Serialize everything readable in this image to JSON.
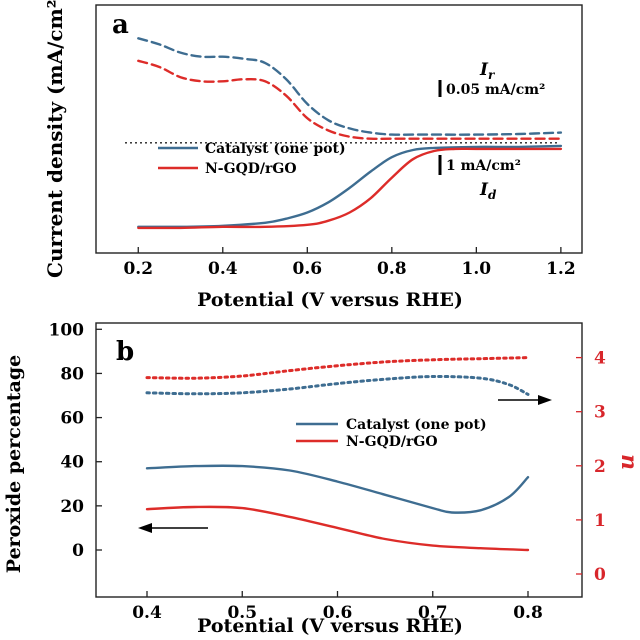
{
  "chart_data": [
    {
      "type": "line",
      "panel_label": "a",
      "xlabel": "Potential (V versus RHE)",
      "ylabel": "Current density (mA/cm²)",
      "xlim": [
        0.1,
        1.25
      ],
      "xticks": [
        "0.2",
        "0.4",
        "0.6",
        "0.8",
        "1.0",
        "1.2"
      ],
      "y_tick_labels": "none",
      "legend": {
        "placement": "middle-left",
        "entries": [
          "Catalyst (one pot)",
          "N-GQD/rGO"
        ]
      },
      "reference_line": {
        "style": "dotted",
        "description": "zero-current baseline"
      },
      "annotations": {
        "ring_label": "I",
        "ring_subscript": "r",
        "ring_scale": "0.05 mA/cm²",
        "disk_label": "I",
        "disk_subscript": "d",
        "disk_scale": "1 mA/cm²"
      },
      "series": [
        {
          "name": "Catalyst (one pot)",
          "role": "ring current",
          "color": "#3e6d91",
          "style": "dashed",
          "points": [
            [
              0.2,
              95
            ],
            [
              0.25,
              92
            ],
            [
              0.3,
              88
            ],
            [
              0.35,
              86
            ],
            [
              0.4,
              86
            ],
            [
              0.45,
              85
            ],
            [
              0.5,
              83
            ],
            [
              0.55,
              75
            ],
            [
              0.6,
              63
            ],
            [
              0.65,
              55
            ],
            [
              0.7,
              51
            ],
            [
              0.75,
              49
            ],
            [
              0.8,
              48
            ],
            [
              0.85,
              48
            ],
            [
              0.9,
              48
            ],
            [
              1.0,
              48
            ],
            [
              1.1,
              48.3
            ],
            [
              1.2,
              49
            ]
          ]
        },
        {
          "name": "N-GQD/rGO",
          "role": "ring current",
          "color": "#dd2c29",
          "style": "dashed",
          "points": [
            [
              0.2,
              84
            ],
            [
              0.25,
              81
            ],
            [
              0.3,
              76
            ],
            [
              0.35,
              74
            ],
            [
              0.4,
              74
            ],
            [
              0.45,
              75
            ],
            [
              0.5,
              74
            ],
            [
              0.55,
              67
            ],
            [
              0.6,
              56
            ],
            [
              0.65,
              50
            ],
            [
              0.7,
              47
            ],
            [
              0.75,
              46
            ],
            [
              0.8,
              46
            ],
            [
              0.85,
              46
            ],
            [
              0.9,
              46
            ],
            [
              1.0,
              46
            ],
            [
              1.1,
              46
            ],
            [
              1.2,
              46
            ]
          ]
        },
        {
          "name": "Catalyst (one pot)",
          "role": "disk current",
          "color": "#3e6d91",
          "style": "solid",
          "points": [
            [
              0.2,
              3
            ],
            [
              0.3,
              3
            ],
            [
              0.4,
              3.5
            ],
            [
              0.5,
              5
            ],
            [
              0.55,
              7
            ],
            [
              0.6,
              10
            ],
            [
              0.65,
              15
            ],
            [
              0.7,
              22
            ],
            [
              0.75,
              30
            ],
            [
              0.8,
              37
            ],
            [
              0.85,
              40.5
            ],
            [
              0.9,
              41.5
            ],
            [
              1.0,
              42
            ],
            [
              1.1,
              42
            ],
            [
              1.2,
              42.5
            ]
          ]
        },
        {
          "name": "N-GQD/rGO",
          "role": "disk current",
          "color": "#dd2c29",
          "style": "solid",
          "points": [
            [
              0.2,
              2.5
            ],
            [
              0.3,
              2.5
            ],
            [
              0.4,
              3
            ],
            [
              0.5,
              3
            ],
            [
              0.6,
              4
            ],
            [
              0.65,
              6
            ],
            [
              0.7,
              10
            ],
            [
              0.75,
              17
            ],
            [
              0.8,
              27
            ],
            [
              0.85,
              36
            ],
            [
              0.9,
              40
            ],
            [
              0.95,
              41
            ],
            [
              1.0,
              41
            ],
            [
              1.1,
              41
            ],
            [
              1.2,
              41
            ]
          ]
        }
      ]
    },
    {
      "type": "line",
      "panel_label": "b",
      "xlabel": "Potential (V versus RHE)",
      "ylabel": "Peroxide percentage",
      "y2label": "n",
      "xlim": [
        0.35,
        0.85
      ],
      "ylim": [
        -10,
        100
      ],
      "y2lim": [
        0,
        4.4
      ],
      "xticks": [
        "0.4",
        "0.5",
        "0.6",
        "0.7",
        "0.8"
      ],
      "yticks": [
        "0",
        "20",
        "40",
        "60",
        "80",
        "100"
      ],
      "y2ticks": [
        "0",
        "1",
        "2",
        "3",
        "4"
      ],
      "legend": {
        "placement": "middle-right",
        "entries": [
          "Catalyst (one pot)",
          "N-GQD/rGO"
        ]
      },
      "arrows": [
        {
          "direction": "right",
          "meaning": "dotted curves read on right axis (n)"
        },
        {
          "direction": "left",
          "meaning": "solid curves read on left axis (peroxide %)"
        }
      ],
      "series": [
        {
          "name": "Catalyst (one pot)",
          "axis": "left",
          "color": "#3e6d91",
          "style": "solid",
          "points": [
            [
              0.4,
              37
            ],
            [
              0.45,
              38
            ],
            [
              0.5,
              38
            ],
            [
              0.55,
              36
            ],
            [
              0.6,
              31
            ],
            [
              0.65,
              25
            ],
            [
              0.7,
              19
            ],
            [
              0.72,
              17
            ],
            [
              0.75,
              18
            ],
            [
              0.78,
              24
            ],
            [
              0.8,
              33
            ]
          ]
        },
        {
          "name": "N-GQD/rGO",
          "axis": "left",
          "color": "#dd2c29",
          "style": "solid",
          "points": [
            [
              0.4,
              18.5
            ],
            [
              0.45,
              19.5
            ],
            [
              0.5,
              19
            ],
            [
              0.55,
              15
            ],
            [
              0.6,
              10
            ],
            [
              0.65,
              5
            ],
            [
              0.7,
              2
            ],
            [
              0.75,
              0.8
            ],
            [
              0.8,
              0
            ]
          ]
        },
        {
          "name": "Catalyst (one pot)",
          "axis": "right",
          "color": "#3e6d91",
          "style": "dotted",
          "points": [
            [
              0.4,
              3.35
            ],
            [
              0.45,
              3.33
            ],
            [
              0.5,
              3.35
            ],
            [
              0.55,
              3.42
            ],
            [
              0.6,
              3.52
            ],
            [
              0.65,
              3.6
            ],
            [
              0.7,
              3.65
            ],
            [
              0.75,
              3.62
            ],
            [
              0.78,
              3.5
            ],
            [
              0.8,
              3.32
            ]
          ]
        },
        {
          "name": "N-GQD/rGO",
          "axis": "right",
          "color": "#dd2c29",
          "style": "dotted",
          "points": [
            [
              0.4,
              3.63
            ],
            [
              0.45,
              3.62
            ],
            [
              0.5,
              3.66
            ],
            [
              0.55,
              3.76
            ],
            [
              0.6,
              3.85
            ],
            [
              0.65,
              3.92
            ],
            [
              0.7,
              3.96
            ],
            [
              0.75,
              3.98
            ],
            [
              0.8,
              4.0
            ]
          ]
        }
      ]
    }
  ]
}
